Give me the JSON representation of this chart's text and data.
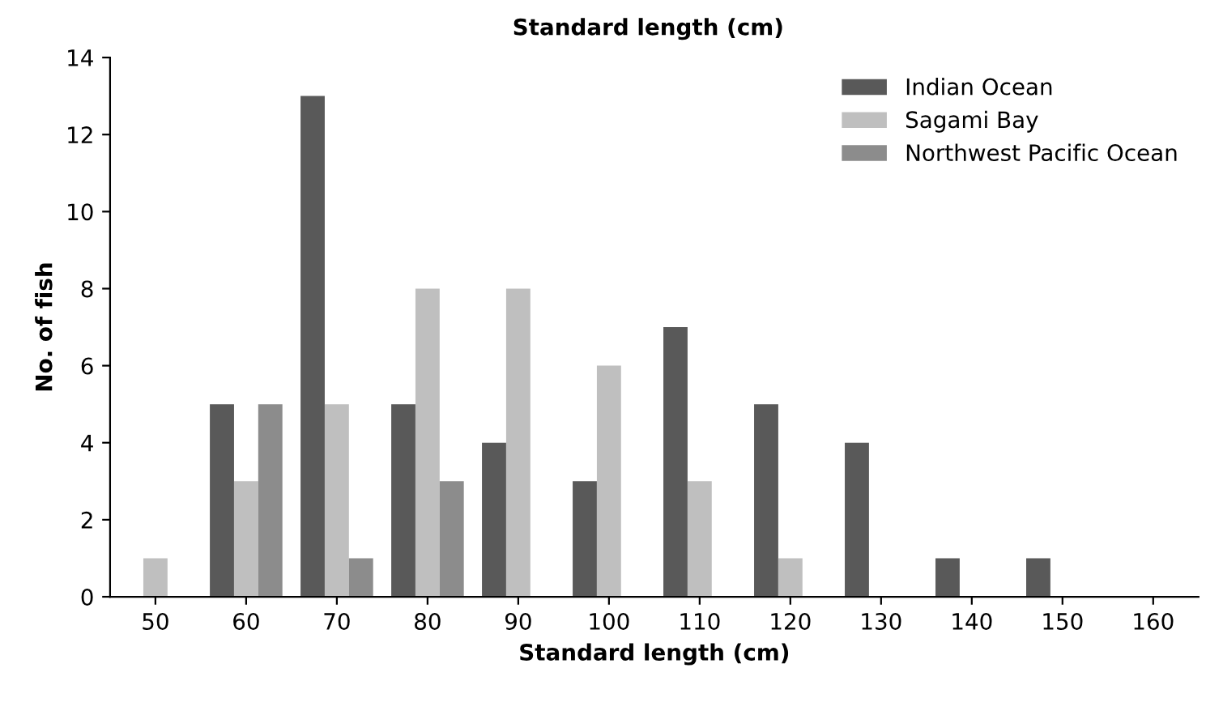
{
  "chart_data": {
    "type": "bar",
    "title": "Standard length (cm)",
    "xlabel": "Standard length (cm)",
    "ylabel": "No. of fish",
    "categories": [
      "50",
      "60",
      "70",
      "80",
      "90",
      "100",
      "110",
      "120",
      "130",
      "140",
      "150",
      "160"
    ],
    "series": [
      {
        "name": "Indian Ocean",
        "color": "#595959",
        "values": [
          0,
          5,
          13,
          5,
          4,
          3,
          7,
          5,
          4,
          1,
          1,
          0
        ]
      },
      {
        "name": "Sagami Bay",
        "color": "#bfbfbf",
        "values": [
          1,
          3,
          5,
          8,
          8,
          6,
          3,
          1,
          0,
          0,
          0,
          0
        ]
      },
      {
        "name": "Northwest Pacific Ocean",
        "color": "#8c8c8c",
        "values": [
          0,
          5,
          1,
          3,
          0,
          0,
          0,
          0,
          0,
          0,
          0,
          0
        ]
      }
    ],
    "ylim": [
      0,
      14
    ],
    "yticks": [
      0,
      2,
      4,
      6,
      8,
      10,
      12,
      14
    ],
    "grid": false,
    "legend": "top right"
  }
}
